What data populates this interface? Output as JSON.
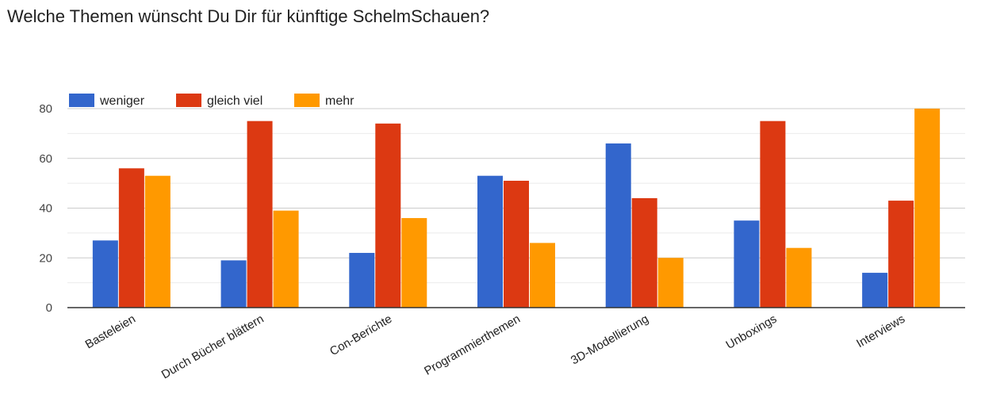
{
  "title": "Welche Themen wünscht Du Dir für künftige SchelmSchauen?",
  "chart_data": {
    "type": "bar",
    "title": "Welche Themen wünscht Du Dir für künftige SchelmSchauen?",
    "xlabel": "",
    "ylabel": "",
    "ylim": [
      0,
      80
    ],
    "yticks": [
      0,
      20,
      40,
      60,
      80
    ],
    "grid": true,
    "legend_position": "top-left",
    "categories": [
      "Basteleien",
      "Durch Bücher blättern",
      "Con-Berichte",
      "Programmierthemen",
      "3D-Modellierung",
      "Unboxings",
      "Interviews"
    ],
    "series": [
      {
        "name": "weniger",
        "color": "#3366cc",
        "values": [
          27,
          19,
          22,
          53,
          66,
          35,
          14
        ]
      },
      {
        "name": "gleich viel",
        "color": "#dc3912",
        "values": [
          56,
          75,
          74,
          51,
          44,
          75,
          43
        ]
      },
      {
        "name": "mehr",
        "color": "#ff9900",
        "values": [
          53,
          39,
          36,
          26,
          20,
          24,
          80
        ]
      }
    ]
  }
}
